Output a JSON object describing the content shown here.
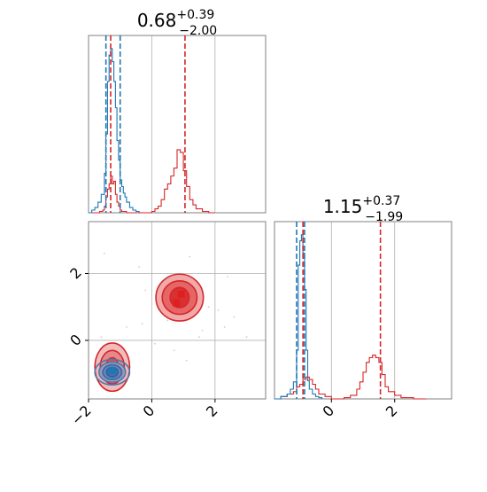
{
  "colors": {
    "red": "#d62728",
    "blue": "#1f77b4",
    "red_fill": "#e8a0a0",
    "red_dark": "#e02020",
    "grid": "#b0b0b0",
    "frame": "#808080",
    "scatter": "#e9c2c2"
  },
  "chart_data": [
    {
      "type": "histogram",
      "panel": "top-left",
      "title": {
        "value": "0.68",
        "sup": "+0.39",
        "sub": "−2.00"
      },
      "xlim": [
        -2.0,
        3.6
      ],
      "grid": true,
      "series": [
        {
          "color": "red",
          "step": true,
          "x": [
            -2.0,
            -1.8,
            -1.65,
            -1.55,
            -1.5,
            -1.45,
            -1.4,
            -1.35,
            -1.3,
            -1.25,
            -1.2,
            -1.15,
            -1.1,
            -1.05,
            -1.0,
            -0.95,
            -0.9,
            -0.8,
            -0.6,
            -0.4,
            -0.2,
            0.0,
            0.1,
            0.2,
            0.3,
            0.4,
            0.5,
            0.6,
            0.7,
            0.8,
            0.9,
            1.0,
            1.1,
            1.2,
            1.3,
            1.4,
            1.6,
            1.8,
            2.0
          ],
          "y": [
            0,
            0,
            1,
            2,
            5,
            12,
            18,
            22,
            28,
            22,
            24,
            14,
            8,
            5,
            2,
            1,
            1,
            0,
            0,
            0,
            0,
            1,
            3,
            5,
            10,
            18,
            22,
            28,
            34,
            48,
            46,
            32,
            20,
            10,
            6,
            3,
            1,
            0,
            0
          ]
        },
        {
          "color": "blue",
          "step": true,
          "x": [
            -2.0,
            -1.9,
            -1.8,
            -1.7,
            -1.6,
            -1.5,
            -1.45,
            -1.4,
            -1.35,
            -1.3,
            -1.25,
            -1.2,
            -1.15,
            -1.1,
            -1.05,
            -1.0,
            -0.95,
            -0.9,
            -0.85,
            -0.8,
            -0.7,
            -0.6,
            -0.5,
            -0.4
          ],
          "y": [
            0,
            2,
            4,
            8,
            14,
            30,
            60,
            100,
            120,
            125,
            115,
            100,
            80,
            55,
            40,
            25,
            20,
            15,
            12,
            8,
            4,
            2,
            1,
            0
          ]
        }
      ],
      "vlines": [
        {
          "x": -1.45,
          "color": "blue"
        },
        {
          "x": -1.3,
          "color": "red"
        },
        {
          "x": -1.0,
          "color": "blue"
        },
        {
          "x": 1.05,
          "color": "red"
        }
      ]
    },
    {
      "type": "contour",
      "panel": "bottom-left",
      "xlim": [
        -2.0,
        3.6
      ],
      "ylim": [
        -1.75,
        3.55
      ],
      "xticks": [
        -2,
        0,
        2
      ],
      "xtick_labels": [
        "−2",
        "0",
        "2"
      ],
      "yticks": [
        0,
        2
      ],
      "ytick_labels": [
        "0",
        "2"
      ],
      "grid": true,
      "red_blob": {
        "cx": 0.88,
        "cy": 1.28,
        "levels": [
          [
            0.75,
            0.7
          ],
          [
            0.55,
            0.5
          ],
          [
            0.3,
            0.3
          ]
        ]
      },
      "lower_red_blob": {
        "cx": -1.25,
        "cy": -0.8,
        "levels": [
          [
            0.55,
            0.72
          ],
          [
            0.38,
            0.5
          ],
          [
            0.2,
            0.28
          ]
        ]
      },
      "blue_blob": {
        "cx": -1.25,
        "cy": -0.95,
        "levels": [
          [
            0.55,
            0.38
          ],
          [
            0.42,
            0.3
          ],
          [
            0.3,
            0.22
          ],
          [
            0.18,
            0.14
          ]
        ]
      },
      "markers": [
        {
          "x": 0.78,
          "y": 1.12,
          "color": "red_dark"
        },
        {
          "x": 0.93,
          "y": 1.38,
          "color": "red_dark"
        },
        {
          "x": -1.25,
          "y": -0.9,
          "color": "blue"
        }
      ],
      "scatter": [
        [
          -0.4,
          2.2
        ],
        [
          1.0,
          1.8
        ],
        [
          2.1,
          0.9
        ],
        [
          1.6,
          0.3
        ],
        [
          2.3,
          0.4
        ],
        [
          -0.2,
          1.5
        ],
        [
          0.2,
          1.0
        ],
        [
          1.2,
          2.5
        ],
        [
          2.0,
          2.1
        ],
        [
          0.5,
          0.6
        ],
        [
          1.5,
          0.1
        ],
        [
          2.6,
          0.7
        ],
        [
          3.0,
          0.1
        ],
        [
          -0.3,
          0.5
        ],
        [
          0.1,
          -0.1
        ],
        [
          1.1,
          -0.6
        ],
        [
          0.4,
          1.4
        ],
        [
          1.8,
          1.0
        ],
        [
          2.4,
          1.9
        ],
        [
          -0.8,
          0.4
        ],
        [
          -1.6,
          0.1
        ],
        [
          -1.5,
          2.6
        ],
        [
          0.7,
          -0.3
        ]
      ]
    },
    {
      "type": "histogram",
      "panel": "bottom-right",
      "title": {
        "value": "1.15",
        "sup": "+0.37",
        "sub": "−1.99"
      },
      "xlim": [
        -1.8,
        3.8
      ],
      "xticks": [
        0,
        2
      ],
      "xtick_labels": [
        "0",
        "2"
      ],
      "grid": true,
      "series": [
        {
          "color": "red",
          "step": true,
          "x": [
            -1.8,
            -1.6,
            -1.4,
            -1.2,
            -1.1,
            -1.0,
            -0.9,
            -0.8,
            -0.7,
            -0.6,
            -0.5,
            -0.4,
            -0.2,
            0.0,
            0.2,
            0.4,
            0.6,
            0.8,
            0.9,
            1.0,
            1.1,
            1.2,
            1.3,
            1.4,
            1.5,
            1.6,
            1.7,
            1.8,
            2.0,
            2.2,
            2.4,
            2.6,
            3.0
          ],
          "y": [
            0,
            2,
            4,
            6,
            10,
            12,
            16,
            18,
            16,
            12,
            8,
            4,
            2,
            0,
            0,
            1,
            3,
            8,
            14,
            22,
            30,
            34,
            36,
            34,
            30,
            20,
            10,
            6,
            3,
            1,
            1,
            0,
            0
          ]
        },
        {
          "color": "blue",
          "step": true,
          "x": [
            -1.8,
            -1.6,
            -1.4,
            -1.3,
            -1.2,
            -1.1,
            -1.05,
            -1.0,
            -0.95,
            -0.9,
            -0.85,
            -0.8,
            -0.75,
            -0.7,
            -0.6,
            -0.5,
            -0.4,
            -0.3
          ],
          "y": [
            0,
            2,
            4,
            8,
            14,
            40,
            110,
            130,
            135,
            120,
            90,
            40,
            15,
            8,
            4,
            2,
            1,
            0
          ]
        }
      ],
      "vlines": [
        {
          "x": -1.1,
          "color": "blue"
        },
        {
          "x": -0.9,
          "color": "red"
        },
        {
          "x": -0.85,
          "color": "blue"
        },
        {
          "x": 1.55,
          "color": "red"
        }
      ]
    }
  ]
}
